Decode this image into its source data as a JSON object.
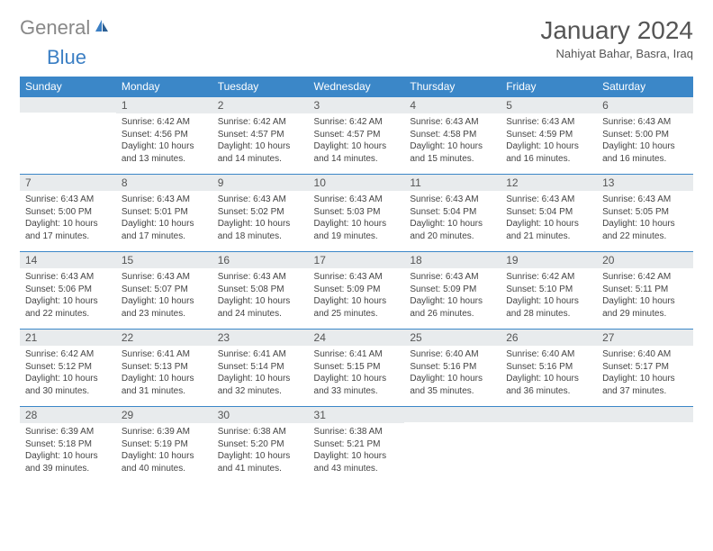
{
  "logo": {
    "general": "General",
    "blue": "Blue"
  },
  "title": "January 2024",
  "location": "Nahiyat Bahar, Basra, Iraq",
  "colors": {
    "header_bg": "#3b87c8",
    "header_text": "#ffffff",
    "daynum_bg": "#e8ebed",
    "text": "#444444",
    "logo_gray": "#888888",
    "logo_blue": "#3b7fc4"
  },
  "weekdays": [
    "Sunday",
    "Monday",
    "Tuesday",
    "Wednesday",
    "Thursday",
    "Friday",
    "Saturday"
  ],
  "first_weekday_offset": 1,
  "days": [
    {
      "n": 1,
      "sr": "6:42 AM",
      "ss": "4:56 PM",
      "dl": "10 hours and 13 minutes."
    },
    {
      "n": 2,
      "sr": "6:42 AM",
      "ss": "4:57 PM",
      "dl": "10 hours and 14 minutes."
    },
    {
      "n": 3,
      "sr": "6:42 AM",
      "ss": "4:57 PM",
      "dl": "10 hours and 14 minutes."
    },
    {
      "n": 4,
      "sr": "6:43 AM",
      "ss": "4:58 PM",
      "dl": "10 hours and 15 minutes."
    },
    {
      "n": 5,
      "sr": "6:43 AM",
      "ss": "4:59 PM",
      "dl": "10 hours and 16 minutes."
    },
    {
      "n": 6,
      "sr": "6:43 AM",
      "ss": "5:00 PM",
      "dl": "10 hours and 16 minutes."
    },
    {
      "n": 7,
      "sr": "6:43 AM",
      "ss": "5:00 PM",
      "dl": "10 hours and 17 minutes."
    },
    {
      "n": 8,
      "sr": "6:43 AM",
      "ss": "5:01 PM",
      "dl": "10 hours and 17 minutes."
    },
    {
      "n": 9,
      "sr": "6:43 AM",
      "ss": "5:02 PM",
      "dl": "10 hours and 18 minutes."
    },
    {
      "n": 10,
      "sr": "6:43 AM",
      "ss": "5:03 PM",
      "dl": "10 hours and 19 minutes."
    },
    {
      "n": 11,
      "sr": "6:43 AM",
      "ss": "5:04 PM",
      "dl": "10 hours and 20 minutes."
    },
    {
      "n": 12,
      "sr": "6:43 AM",
      "ss": "5:04 PM",
      "dl": "10 hours and 21 minutes."
    },
    {
      "n": 13,
      "sr": "6:43 AM",
      "ss": "5:05 PM",
      "dl": "10 hours and 22 minutes."
    },
    {
      "n": 14,
      "sr": "6:43 AM",
      "ss": "5:06 PM",
      "dl": "10 hours and 22 minutes."
    },
    {
      "n": 15,
      "sr": "6:43 AM",
      "ss": "5:07 PM",
      "dl": "10 hours and 23 minutes."
    },
    {
      "n": 16,
      "sr": "6:43 AM",
      "ss": "5:08 PM",
      "dl": "10 hours and 24 minutes."
    },
    {
      "n": 17,
      "sr": "6:43 AM",
      "ss": "5:09 PM",
      "dl": "10 hours and 25 minutes."
    },
    {
      "n": 18,
      "sr": "6:43 AM",
      "ss": "5:09 PM",
      "dl": "10 hours and 26 minutes."
    },
    {
      "n": 19,
      "sr": "6:42 AM",
      "ss": "5:10 PM",
      "dl": "10 hours and 28 minutes."
    },
    {
      "n": 20,
      "sr": "6:42 AM",
      "ss": "5:11 PM",
      "dl": "10 hours and 29 minutes."
    },
    {
      "n": 21,
      "sr": "6:42 AM",
      "ss": "5:12 PM",
      "dl": "10 hours and 30 minutes."
    },
    {
      "n": 22,
      "sr": "6:41 AM",
      "ss": "5:13 PM",
      "dl": "10 hours and 31 minutes."
    },
    {
      "n": 23,
      "sr": "6:41 AM",
      "ss": "5:14 PM",
      "dl": "10 hours and 32 minutes."
    },
    {
      "n": 24,
      "sr": "6:41 AM",
      "ss": "5:15 PM",
      "dl": "10 hours and 33 minutes."
    },
    {
      "n": 25,
      "sr": "6:40 AM",
      "ss": "5:16 PM",
      "dl": "10 hours and 35 minutes."
    },
    {
      "n": 26,
      "sr": "6:40 AM",
      "ss": "5:16 PM",
      "dl": "10 hours and 36 minutes."
    },
    {
      "n": 27,
      "sr": "6:40 AM",
      "ss": "5:17 PM",
      "dl": "10 hours and 37 minutes."
    },
    {
      "n": 28,
      "sr": "6:39 AM",
      "ss": "5:18 PM",
      "dl": "10 hours and 39 minutes."
    },
    {
      "n": 29,
      "sr": "6:39 AM",
      "ss": "5:19 PM",
      "dl": "10 hours and 40 minutes."
    },
    {
      "n": 30,
      "sr": "6:38 AM",
      "ss": "5:20 PM",
      "dl": "10 hours and 41 minutes."
    },
    {
      "n": 31,
      "sr": "6:38 AM",
      "ss": "5:21 PM",
      "dl": "10 hours and 43 minutes."
    }
  ],
  "labels": {
    "sunrise": "Sunrise:",
    "sunset": "Sunset:",
    "daylight": "Daylight:"
  }
}
